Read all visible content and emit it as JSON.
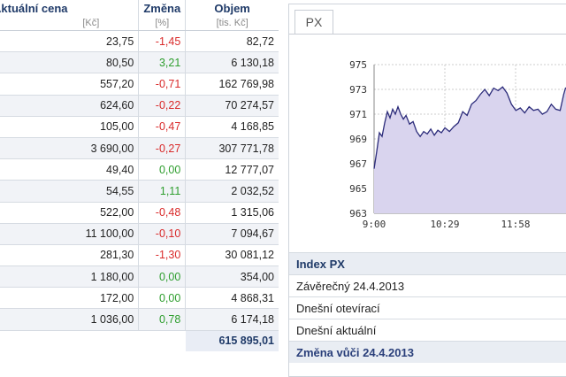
{
  "table": {
    "headers": {
      "price": "Aktuální cena",
      "change": "Změna",
      "volume": "Objem"
    },
    "units": {
      "price": "[Kč]",
      "change": "[%]",
      "volume": "[tis. Kč]"
    },
    "rows": [
      {
        "price": "23,75",
        "change": "-1,45",
        "volume": "82,72",
        "dir": "neg"
      },
      {
        "price": "80,50",
        "change": "3,21",
        "volume": "6 130,18",
        "dir": "pos"
      },
      {
        "price": "557,20",
        "change": "-0,71",
        "volume": "162 769,98",
        "dir": "neg"
      },
      {
        "price": "624,60",
        "change": "-0,22",
        "volume": "70 274,57",
        "dir": "neg"
      },
      {
        "price": "105,00",
        "change": "-0,47",
        "volume": "4 168,85",
        "dir": "neg"
      },
      {
        "price": "3 690,00",
        "change": "-0,27",
        "volume": "307 771,78",
        "dir": "neg"
      },
      {
        "price": "49,40",
        "change": "0,00",
        "volume": "12 777,07",
        "dir": "zero"
      },
      {
        "price": "54,55",
        "change": "1,11",
        "volume": "2 032,52",
        "dir": "pos"
      },
      {
        "price": "522,00",
        "change": "-0,48",
        "volume": "1 315,06",
        "dir": "neg"
      },
      {
        "price": "11 100,00",
        "change": "-0,10",
        "volume": "7 094,67",
        "dir": "neg"
      },
      {
        "price": "281,30",
        "change": "-1,30",
        "volume": "30 081,12",
        "dir": "neg"
      },
      {
        "price": "1 180,00",
        "change": "0,00",
        "volume": "354,00",
        "dir": "zero"
      },
      {
        "price": "172,00",
        "change": "0,00",
        "volume": "4 868,31",
        "dir": "zero"
      },
      {
        "price": "1 036,00",
        "change": "0,78",
        "volume": "6 174,18",
        "dir": "pos"
      }
    ],
    "total": "615 895,01"
  },
  "panel": {
    "tab_label": "PX",
    "info_title": "Index PX",
    "info_rows": [
      "Závěrečný 24.4.2013",
      "Dnešní otevírací",
      "Dnešní aktuální"
    ],
    "info_last": "Změna vůči 24.4.2013"
  },
  "chart_data": {
    "type": "area",
    "x_tick_labels": [
      "9:00",
      "10:29",
      "11:58"
    ],
    "y_ticks": [
      963,
      965,
      967,
      969,
      971,
      973,
      975
    ],
    "ylim": [
      963,
      975
    ],
    "grid": true,
    "colors": {
      "line": "#2b2b7a",
      "fill": "#d9d4ee",
      "grid": "#cccccc"
    },
    "x": [
      0,
      3,
      6,
      9,
      12,
      15,
      18,
      21,
      24,
      27,
      30,
      33,
      36,
      40,
      44,
      48,
      52,
      56,
      60,
      64,
      68,
      72,
      76,
      80,
      85,
      90,
      95,
      100,
      105,
      110,
      115,
      120,
      125,
      130,
      135,
      140,
      145,
      150,
      155,
      160,
      165,
      170,
      175,
      180,
      185,
      190,
      195,
      200,
      205,
      210,
      214,
      216,
      220
    ],
    "values": [
      966.6,
      968.0,
      969.5,
      969.2,
      970.3,
      971.2,
      970.7,
      971.4,
      971.0,
      971.6,
      971.0,
      970.6,
      970.9,
      970.2,
      970.4,
      969.6,
      969.2,
      969.6,
      969.4,
      969.8,
      969.3,
      969.7,
      969.5,
      969.9,
      969.6,
      970.0,
      970.3,
      971.2,
      970.9,
      971.8,
      972.1,
      972.6,
      973.0,
      972.5,
      973.1,
      972.9,
      973.2,
      972.7,
      971.8,
      971.3,
      971.5,
      971.1,
      971.6,
      971.3,
      971.4,
      971.0,
      971.2,
      971.8,
      971.4,
      971.3,
      972.6,
      973.1,
      973.2
    ],
    "x_max": 220
  }
}
